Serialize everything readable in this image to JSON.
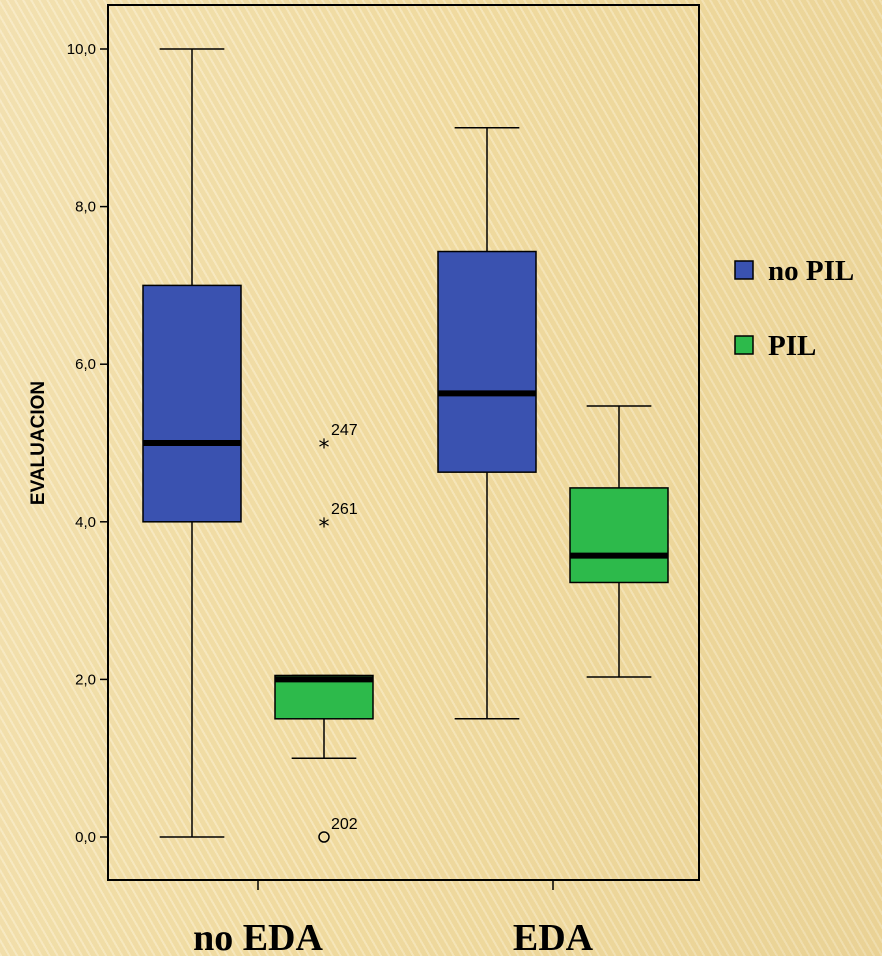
{
  "chart_data": {
    "type": "boxplot",
    "ylabel": "EVALUACION",
    "ylim": [
      0,
      11
    ],
    "yticks": [
      "0,0",
      "2,0",
      "4,0",
      "6,0",
      "8,0",
      "10,0"
    ],
    "ytick_values": [
      0,
      2,
      4,
      6,
      8,
      10
    ],
    "categories": [
      "no EDA",
      "EDA"
    ],
    "legend": {
      "placement": "right"
    },
    "series": [
      {
        "name": "no PIL",
        "color": "#3a52b0",
        "boxes": [
          {
            "category": "no EDA",
            "min": 0.0,
            "q1": 4.0,
            "median": 5.0,
            "q3": 7.0,
            "max": 10.0,
            "outliers": []
          },
          {
            "category": "EDA",
            "min": 1.5,
            "q1": 4.63,
            "median": 5.63,
            "q3": 7.43,
            "max": 9.0,
            "outliers": []
          }
        ]
      },
      {
        "name": "PIL",
        "color": "#2dba4b",
        "boxes": [
          {
            "category": "no EDA",
            "min": 1.0,
            "q1": 1.5,
            "median": 2.0,
            "q3": 2.05,
            "max": 2.05,
            "outliers": [
              {
                "value": 5.0,
                "label": "247",
                "marker": "star"
              },
              {
                "value": 4.0,
                "label": "261",
                "marker": "star"
              },
              {
                "value": 0.0,
                "label": "202",
                "marker": "circle"
              }
            ]
          },
          {
            "category": "EDA",
            "min": 2.03,
            "q1": 3.23,
            "median": 3.57,
            "q3": 4.43,
            "max": 5.47,
            "outliers": []
          }
        ]
      }
    ]
  }
}
